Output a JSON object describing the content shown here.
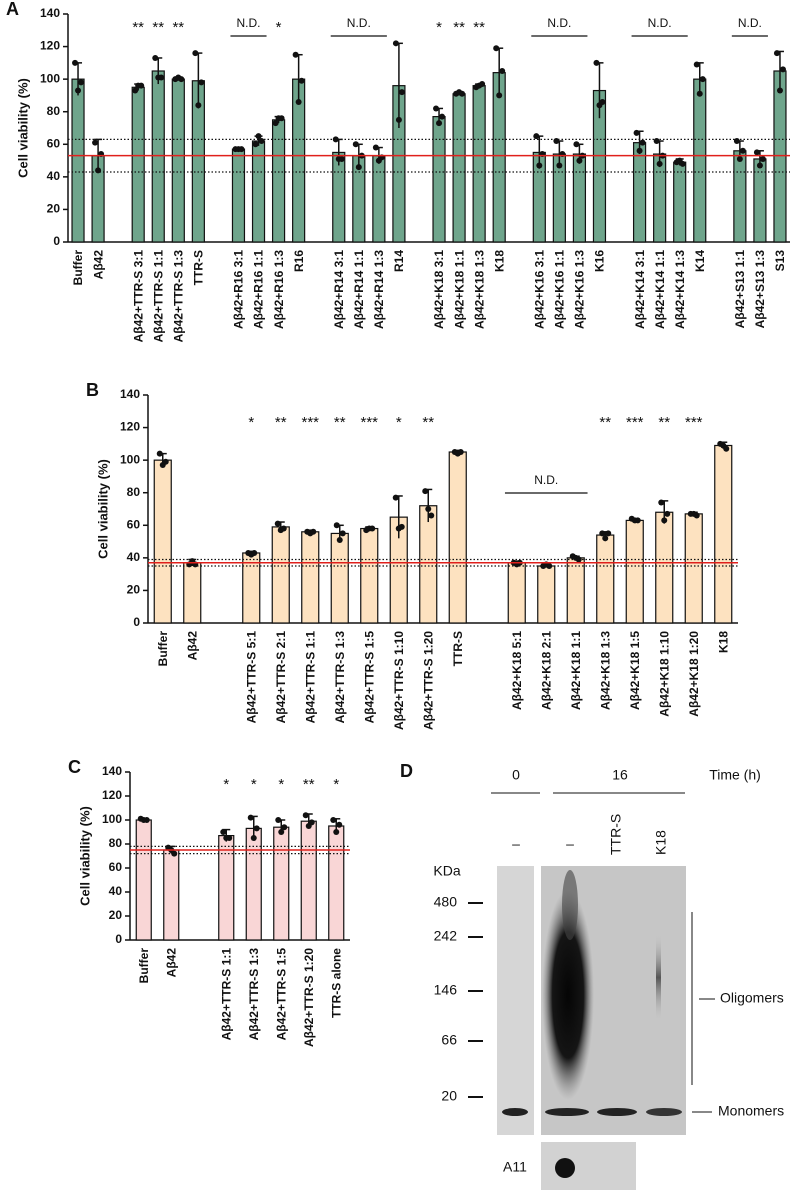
{
  "chart_data": [
    {
      "type": "bar",
      "panel": "A",
      "ylabel": "Cell viability (%)",
      "color": "#6fa58c",
      "reference_color": "#e0201c",
      "ylim": [
        0,
        140
      ],
      "yticks": [
        0,
        20,
        40,
        60,
        80,
        100,
        120,
        140
      ],
      "categories": [
        "Buffer",
        "Aβ42",
        null,
        "Aβ42+TTR-S 3:1",
        "Aβ42+TTR-S 1:1",
        "Aβ42+TTR-S 1:3",
        "TTR-S",
        null,
        "Aβ42+R16 3:1",
        "Aβ42+R16 1:1",
        "Aβ42+R16 1:3",
        "R16",
        null,
        "Aβ42+R14 3:1",
        "Aβ42+R14 1:1",
        "Aβ42+R14 1:3",
        "R14",
        null,
        "Aβ42+K18 3:1",
        "Aβ42+K18 1:1",
        "Aβ42+K18 1:3",
        "K18",
        null,
        "Aβ42+K16 3:1",
        "Aβ42+K16 1:1",
        "Aβ42+K16 1:3",
        "K16",
        null,
        "Aβ42+K14 3:1",
        "Aβ42+K14 1:1",
        "Aβ42+K14 1:3",
        "K14",
        null,
        "Aβ42+S13 1:1",
        "Aβ42+S13 1:3",
        "S13"
      ],
      "values": [
        100,
        53,
        null,
        95,
        105,
        100,
        99,
        null,
        57,
        62,
        75,
        100,
        null,
        55,
        53,
        53,
        96,
        null,
        77,
        91,
        96,
        104,
        null,
        55,
        54,
        54,
        93,
        null,
        61,
        54,
        49,
        100,
        null,
        56,
        51,
        105
      ],
      "errors": [
        10,
        10,
        null,
        2,
        8,
        1,
        17,
        null,
        1,
        3,
        2,
        15,
        null,
        8,
        7,
        5,
        26,
        null,
        5,
        1,
        1,
        15,
        null,
        10,
        8,
        6,
        17,
        null,
        7,
        8,
        2,
        10,
        null,
        6,
        5,
        12
      ],
      "points": [
        [
          110,
          93,
          98
        ],
        [
          61,
          44,
          54
        ],
        null,
        [
          93,
          96,
          96
        ],
        [
          113,
          101,
          101
        ],
        [
          100,
          101,
          100
        ],
        [
          116,
          84,
          98
        ],
        null,
        [
          57,
          57,
          57
        ],
        [
          60,
          65,
          62
        ],
        [
          73,
          76,
          76
        ],
        [
          115,
          86,
          99
        ],
        null,
        [
          63,
          51,
          51
        ],
        [
          60,
          46,
          53
        ],
        [
          58,
          50,
          52
        ],
        [
          122,
          75,
          92
        ],
        null,
        [
          82,
          73,
          77
        ],
        [
          91,
          92,
          91
        ],
        [
          95,
          96,
          97
        ],
        [
          119,
          90,
          105
        ],
        null,
        [
          65,
          47,
          54
        ],
        [
          62,
          47,
          54
        ],
        [
          60,
          50,
          53
        ],
        [
          110,
          84,
          86
        ],
        null,
        [
          67,
          56,
          61
        ],
        [
          62,
          48,
          53
        ],
        [
          49,
          50,
          48
        ],
        [
          109,
          91,
          100
        ],
        null,
        [
          62,
          51,
          56
        ],
        [
          55,
          47,
          51
        ],
        [
          116,
          93,
          106
        ]
      ],
      "significance": [
        null,
        null,
        null,
        "**",
        "**",
        "**",
        null,
        null,
        null,
        null,
        "*",
        null,
        null,
        null,
        null,
        null,
        null,
        null,
        "*",
        "**",
        "**",
        null,
        null,
        null,
        null,
        null,
        null,
        null,
        null,
        null,
        null,
        null,
        null,
        null,
        null,
        null
      ],
      "brackets": [
        {
          "label": "N.D.",
          "span": [
            8,
            9
          ]
        },
        {
          "label": "N.D.",
          "span": [
            13,
            15
          ]
        },
        {
          "label": "N.D.",
          "span": [
            23,
            25
          ]
        },
        {
          "label": "N.D.",
          "span": [
            28,
            30
          ]
        },
        {
          "label": "N.D.",
          "span": [
            33,
            34
          ]
        }
      ]
    },
    {
      "type": "bar",
      "panel": "B",
      "ylabel": "Cell viability (%)",
      "color": "#fde2c0",
      "reference_color": "#e0201c",
      "ylim": [
        0,
        140
      ],
      "yticks": [
        0,
        20,
        40,
        60,
        80,
        100,
        120,
        140
      ],
      "categories": [
        "Buffer",
        "Aβ42",
        null,
        "Aβ42+TTR-S 5:1",
        "Aβ42+TTR-S 2:1",
        "Aβ42+TTR-S 1:1",
        "Aβ42+TTR-S 1:3",
        "Aβ42+TTR-S 1:5",
        "Aβ42+TTR-S 1:10",
        "Aβ42+TTR-S 1:20",
        "TTR-S",
        null,
        "Aβ42+K18 5:1",
        "Aβ42+K18 2:1",
        "Aβ42+K18 1:1",
        "Aβ42+K18 1:3",
        "Aβ42+K18 1:5",
        "Aβ42+K18 1:10",
        "Aβ42+K18 1:20",
        "K18"
      ],
      "values": [
        100,
        37,
        null,
        43,
        59,
        56,
        55,
        58,
        65,
        72,
        105,
        null,
        37,
        35,
        40,
        54,
        63,
        68,
        67,
        109
      ],
      "errors": [
        4,
        2,
        null,
        1,
        3,
        1,
        5,
        1,
        13,
        10,
        1,
        null,
        1,
        1,
        1,
        2,
        1,
        7,
        1,
        2
      ],
      "points": [
        [
          104,
          97,
          99
        ],
        [
          36,
          38,
          36
        ],
        null,
        [
          43,
          42,
          43
        ],
        [
          61,
          57,
          58
        ],
        [
          56,
          55,
          56
        ],
        [
          60,
          51,
          55
        ],
        [
          57,
          58,
          58
        ],
        [
          77,
          58,
          59
        ],
        [
          81,
          70,
          66
        ],
        [
          105,
          104,
          105
        ],
        null,
        [
          37,
          36,
          37
        ],
        [
          35,
          36,
          35
        ],
        [
          41,
          40,
          39
        ],
        [
          55,
          52,
          55
        ],
        [
          64,
          63,
          63
        ],
        [
          74,
          63,
          67
        ],
        [
          67,
          67,
          66
        ],
        [
          110,
          109,
          107
        ]
      ],
      "significance": [
        null,
        null,
        null,
        "*",
        "**",
        "***",
        "**",
        "***",
        "*",
        "**",
        null,
        null,
        null,
        null,
        null,
        "**",
        "***",
        "**",
        "***",
        null
      ],
      "brackets": [
        {
          "label": "N.D.",
          "span": [
            12,
            14
          ]
        }
      ]
    },
    {
      "type": "bar",
      "panel": "C",
      "ylabel": "Cell viability (%)",
      "color": "#f9d6d6",
      "reference_color": "#e0201c",
      "ylim": [
        0,
        140
      ],
      "yticks": [
        0,
        20,
        40,
        60,
        80,
        100,
        120,
        140
      ],
      "categories": [
        "Buffer",
        "Aβ42",
        null,
        "Aβ42+TTR-S 1:1",
        "Aβ42+TTR-S 1:3",
        "Aβ42+TTR-S 1:5",
        "Aβ42+TTR-S 1:20",
        "TTR-S alone"
      ],
      "values": [
        100,
        75,
        null,
        87,
        93,
        94,
        99,
        95
      ],
      "errors": [
        1,
        3,
        null,
        5,
        10,
        6,
        6,
        6
      ],
      "points": [
        [
          101,
          100,
          100
        ],
        [
          77,
          75,
          72
        ],
        null,
        [
          90,
          85,
          85
        ],
        [
          102,
          85,
          93
        ],
        [
          100,
          90,
          94
        ],
        [
          104,
          95,
          98
        ],
        [
          100,
          90,
          96
        ]
      ],
      "significance": [
        null,
        null,
        null,
        "*",
        "*",
        "*",
        "**",
        "*"
      ],
      "brackets": []
    }
  ],
  "blot": {
    "panel": "D",
    "time_label": "Time (h)",
    "time_points": [
      "0",
      "16"
    ],
    "lanes": [
      "–",
      "–",
      "TTR-S",
      "K18"
    ],
    "unit": "KDa",
    "markers": [
      480,
      242,
      146,
      66,
      20
    ],
    "oligomers": "Oligomers",
    "monomers": "Monomers",
    "dot_blot": "A11"
  }
}
